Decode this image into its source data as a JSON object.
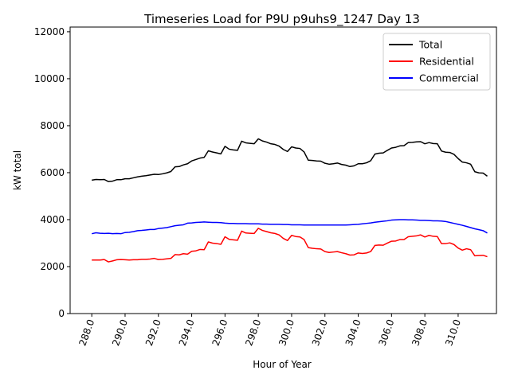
{
  "chart_data": {
    "type": "line",
    "title": "Timeseries Load for P9U p9uhs9_1247  Day 13",
    "xlabel": "Hour of Year",
    "ylabel": "kW total",
    "xlim": [
      286.7,
      312.3
    ],
    "ylim": [
      0,
      12200
    ],
    "grid": false,
    "legend_position": "top-right",
    "x_ticks": [
      288,
      290,
      292,
      294,
      296,
      298,
      300,
      302,
      304,
      306,
      308,
      310
    ],
    "x_tick_labels": [
      "288.0",
      "290.0",
      "292.0",
      "294.0",
      "296.0",
      "298.0",
      "300.0",
      "302.0",
      "304.0",
      "306.0",
      "308.0",
      "310.0"
    ],
    "y_ticks": [
      0,
      2000,
      4000,
      6000,
      8000,
      10000,
      12000
    ],
    "y_tick_labels": [
      "0",
      "2000",
      "4000",
      "6000",
      "8000",
      "10000",
      "12000"
    ],
    "x_start": 288,
    "x_step": 0.25,
    "series": [
      {
        "name": "Total",
        "color": "#000000",
        "values": [
          5680,
          5710,
          5700,
          5710,
          5620,
          5640,
          5700,
          5700,
          5740,
          5740,
          5780,
          5820,
          5850,
          5870,
          5900,
          5930,
          5920,
          5950,
          5990,
          6050,
          6250,
          6260,
          6330,
          6380,
          6500,
          6560,
          6620,
          6650,
          6930,
          6880,
          6840,
          6800,
          7120,
          7000,
          6970,
          6950,
          7340,
          7270,
          7250,
          7230,
          7440,
          7350,
          7300,
          7230,
          7200,
          7130,
          6990,
          6900,
          7100,
          7050,
          7030,
          6880,
          6530,
          6520,
          6500,
          6490,
          6400,
          6360,
          6380,
          6410,
          6350,
          6320,
          6260,
          6290,
          6380,
          6380,
          6420,
          6510,
          6790,
          6830,
          6840,
          6950,
          7050,
          7080,
          7140,
          7150,
          7280,
          7290,
          7310,
          7320,
          7230,
          7280,
          7240,
          7230,
          6920,
          6870,
          6860,
          6780,
          6600,
          6450,
          6420,
          6360,
          6040,
          5990,
          5980,
          5850
        ]
      },
      {
        "name": "Residential",
        "color": "#ff0000",
        "values": [
          2280,
          2280,
          2280,
          2300,
          2200,
          2240,
          2290,
          2300,
          2290,
          2280,
          2290,
          2290,
          2310,
          2310,
          2320,
          2350,
          2300,
          2310,
          2330,
          2350,
          2510,
          2500,
          2550,
          2530,
          2650,
          2670,
          2730,
          2720,
          3050,
          3000,
          2980,
          2950,
          3270,
          3160,
          3140,
          3120,
          3510,
          3430,
          3420,
          3410,
          3630,
          3540,
          3490,
          3440,
          3410,
          3350,
          3200,
          3110,
          3330,
          3280,
          3260,
          3150,
          2810,
          2780,
          2760,
          2750,
          2640,
          2600,
          2620,
          2640,
          2590,
          2550,
          2490,
          2500,
          2580,
          2560,
          2580,
          2640,
          2900,
          2920,
          2910,
          3000,
          3080,
          3090,
          3150,
          3150,
          3270,
          3290,
          3310,
          3350,
          3260,
          3330,
          3290,
          3280,
          2980,
          2980,
          3010,
          2940,
          2790,
          2700,
          2760,
          2720,
          2460,
          2470,
          2480,
          2420
        ]
      },
      {
        "name": "Commercial",
        "color": "#0000ff",
        "values": [
          3400,
          3440,
          3420,
          3410,
          3420,
          3400,
          3410,
          3400,
          3450,
          3460,
          3490,
          3530,
          3540,
          3560,
          3580,
          3580,
          3620,
          3640,
          3660,
          3700,
          3740,
          3760,
          3780,
          3850,
          3860,
          3880,
          3890,
          3900,
          3890,
          3880,
          3880,
          3870,
          3850,
          3840,
          3840,
          3830,
          3830,
          3830,
          3820,
          3820,
          3820,
          3810,
          3810,
          3800,
          3800,
          3800,
          3790,
          3790,
          3780,
          3780,
          3780,
          3770,
          3770,
          3770,
          3770,
          3770,
          3770,
          3770,
          3770,
          3770,
          3770,
          3770,
          3780,
          3790,
          3800,
          3820,
          3840,
          3860,
          3890,
          3910,
          3930,
          3950,
          3980,
          3990,
          4000,
          4000,
          3990,
          3990,
          3980,
          3970,
          3970,
          3960,
          3950,
          3950,
          3940,
          3920,
          3880,
          3840,
          3800,
          3760,
          3710,
          3660,
          3610,
          3570,
          3530,
          3430
        ]
      }
    ]
  }
}
